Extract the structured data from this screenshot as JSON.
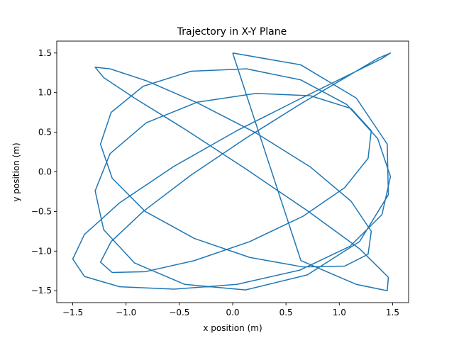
{
  "chart_data": {
    "type": "line",
    "title": "Trajectory in X-Y Plane",
    "xlabel": "x position (m)",
    "ylabel": "y position (m)",
    "xlim": [
      -1.65,
      1.65
    ],
    "ylim": [
      -1.65,
      1.65
    ],
    "xticks": [
      -1.5,
      -1.0,
      -0.5,
      0.0,
      0.5,
      1.0,
      1.5
    ],
    "yticks": [
      -1.5,
      -1.0,
      -0.5,
      0.0,
      0.5,
      1.0,
      1.5
    ],
    "xtick_labels": [
      "−1.5",
      "−1.0",
      "−0.5",
      "0.0",
      "0.5",
      "1.0",
      "1.5"
    ],
    "ytick_labels": [
      "−1.5",
      "−1.0",
      "−0.5",
      "0.0",
      "0.5",
      "1.0",
      "1.5"
    ],
    "grid": false,
    "legend": "none",
    "series": [
      {
        "color": "#1f77b4",
        "x": [
          0.0,
          0.64,
          1.16,
          1.45,
          1.46,
          1.19,
          0.7,
          0.12,
          -0.45,
          -0.92,
          -1.21,
          -1.29,
          -1.15,
          -0.81,
          -0.33,
          0.22,
          0.73,
          1.11,
          1.3,
          1.27,
          1.05,
          0.66,
          0.16,
          -0.36,
          -0.82,
          -1.13,
          -1.24,
          -1.14,
          -0.84,
          -0.39,
          0.13,
          0.64,
          1.07,
          1.36,
          1.48,
          1.4,
          1.1,
          0.63,
          0.04,
          -0.55,
          -1.06,
          -1.39,
          -1.5,
          -1.39,
          -1.06,
          -0.55,
          0.04,
          0.63,
          1.1,
          1.4,
          1.48,
          1.36,
          1.07,
          0.64,
          0.13,
          -0.39,
          -0.84,
          -1.14,
          -1.24,
          -1.13,
          -0.82,
          -0.36,
          0.16,
          0.66,
          1.05,
          1.27,
          1.3,
          1.11,
          0.73,
          0.22,
          -0.33,
          -0.81,
          -1.15,
          -1.29,
          -1.21,
          -0.92,
          -0.45,
          0.12,
          0.7,
          1.19,
          1.46,
          1.45,
          1.16,
          0.64,
          0.0
        ],
        "y": [
          1.5,
          1.35,
          0.93,
          0.35,
          -0.29,
          -0.88,
          -1.3,
          -1.49,
          -1.42,
          -1.15,
          -0.73,
          -0.24,
          0.23,
          0.62,
          0.88,
          0.99,
          0.96,
          0.8,
          0.52,
          0.17,
          -0.2,
          -0.56,
          -0.88,
          -1.12,
          -1.26,
          -1.27,
          -1.14,
          -0.88,
          -0.5,
          -0.04,
          0.43,
          0.86,
          1.2,
          1.43,
          1.5,
          1.43,
          1.23,
          0.92,
          0.52,
          0.07,
          -0.39,
          -0.79,
          -1.1,
          -1.32,
          -1.45,
          -1.48,
          -1.42,
          -1.24,
          -0.94,
          -0.54,
          -0.06,
          0.42,
          0.85,
          1.16,
          1.3,
          1.27,
          1.08,
          0.75,
          0.35,
          -0.08,
          -0.5,
          -0.84,
          -1.08,
          -1.2,
          -1.19,
          -1.04,
          -0.75,
          -0.37,
          0.06,
          0.49,
          0.87,
          1.15,
          1.3,
          1.32,
          1.19,
          0.93,
          0.54,
          0.04,
          -0.49,
          -0.97,
          -1.33,
          -1.5,
          -1.42,
          -1.12,
          1.5
        ]
      }
    ]
  }
}
